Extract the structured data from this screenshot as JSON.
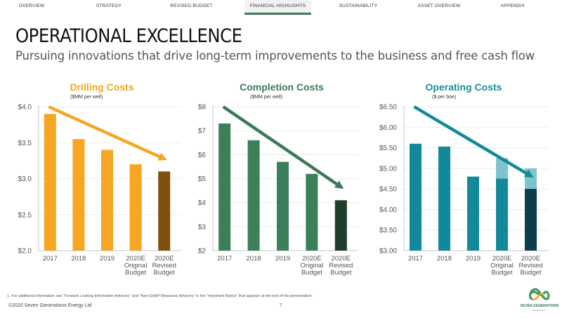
{
  "nav": {
    "tabs": [
      {
        "label": "OVERVIEW",
        "active": false
      },
      {
        "label": "STRATEGY",
        "active": false
      },
      {
        "label": "REVISED BUDGET",
        "active": false
      },
      {
        "label": "FINANCIAL HIGHLIGHTS",
        "active": true
      },
      {
        "label": "SUSTAINABILITY",
        "active": false
      },
      {
        "label": "ASSET OVERVIEW",
        "active": false
      },
      {
        "label": "APPENDIX",
        "active": false
      }
    ]
  },
  "header": {
    "title": "OPERATIONAL EXCELLENCE",
    "subtitle": "Pursuing innovations that drive long-term improvements to the business and free cash flow"
  },
  "footer": {
    "footnote": "1.    For additional information see \"Forward Looking Information Advisory\" and \"Non-GAAP Measures Advisory\" in the \"Important Notice\" that appears at the end of the presentation.",
    "copyright": "©2020 Seven Generations Energy Ltd",
    "page_number": "7",
    "logo_text": "SEVEN GENERATIONS",
    "logo_subtext": "ENERGY"
  },
  "chart_data": [
    {
      "type": "bar",
      "title": "Drilling Costs",
      "subtitle": "($MM per well)",
      "title_color": "#f5a623",
      "categories": [
        [
          "2017"
        ],
        [
          "2018"
        ],
        [
          "2019"
        ],
        [
          "2020E",
          "Original",
          "Budget"
        ],
        [
          "2020E",
          "Revised",
          "Budget"
        ]
      ],
      "values": [
        3.9,
        3.55,
        3.4,
        3.2,
        3.1
      ],
      "overlay_values": [
        null,
        null,
        null,
        null,
        null
      ],
      "bar_colors": [
        "#f5a623",
        "#f5a623",
        "#f5a623",
        "#f5a623",
        "#7f4f0c"
      ],
      "overlay_color": "",
      "ylim": [
        2.0,
        4.0
      ],
      "yticks": [
        2.0,
        2.5,
        3.0,
        3.5,
        4.0
      ],
      "ytick_labels": [
        "$2.0",
        "$2.5",
        "$3.0",
        "$3.5",
        "$4.0"
      ],
      "arrow_color": "#f5a623",
      "trend": "downward"
    },
    {
      "type": "bar",
      "title": "Completion Costs",
      "subtitle": "($MM per well)",
      "title_color": "#3b7a57",
      "categories": [
        [
          "2017"
        ],
        [
          "2018"
        ],
        [
          "2019"
        ],
        [
          "2020E",
          "Original",
          "Budget"
        ],
        [
          "2020E",
          "Revised",
          "Budget"
        ]
      ],
      "values": [
        7.3,
        6.6,
        5.7,
        5.2,
        4.1
      ],
      "overlay_values": [
        null,
        null,
        null,
        null,
        null
      ],
      "bar_colors": [
        "#3b8058",
        "#3b8058",
        "#3b8058",
        "#3b8058",
        "#1f3d2b"
      ],
      "overlay_color": "",
      "ylim": [
        2,
        8
      ],
      "yticks": [
        2,
        3,
        4,
        5,
        6,
        7,
        8
      ],
      "ytick_labels": [
        "$2",
        "$3",
        "$4",
        "$5",
        "$6",
        "$7",
        "$8"
      ],
      "arrow_color": "#3b7a57",
      "trend": "downward"
    },
    {
      "type": "bar",
      "title": "Operating Costs",
      "subtitle": "($ per boe)",
      "title_color": "#12909e",
      "categories": [
        [
          "2017"
        ],
        [
          "2018"
        ],
        [
          "2019"
        ],
        [
          "2020E",
          "Original",
          "Budget"
        ],
        [
          "2020E",
          "Revised",
          "Budget"
        ]
      ],
      "values": [
        5.6,
        5.53,
        4.8,
        4.75,
        4.5
      ],
      "overlay_values": [
        null,
        null,
        null,
        5.25,
        5.0
      ],
      "bar_colors": [
        "#12899a",
        "#12899a",
        "#12899a",
        "#12899a",
        "#0c3f4a"
      ],
      "overlay_color": "#7fc4cc",
      "ylim": [
        3.0,
        6.5
      ],
      "yticks": [
        3.0,
        3.5,
        4.0,
        4.5,
        5.0,
        5.5,
        6.0,
        6.5
      ],
      "ytick_labels": [
        "$3.00",
        "$3.50",
        "$4.00",
        "$4.50",
        "$5.00",
        "$5.50",
        "$6.00",
        "$6.50"
      ],
      "arrow_color": "#12899a",
      "trend": "downward"
    }
  ]
}
